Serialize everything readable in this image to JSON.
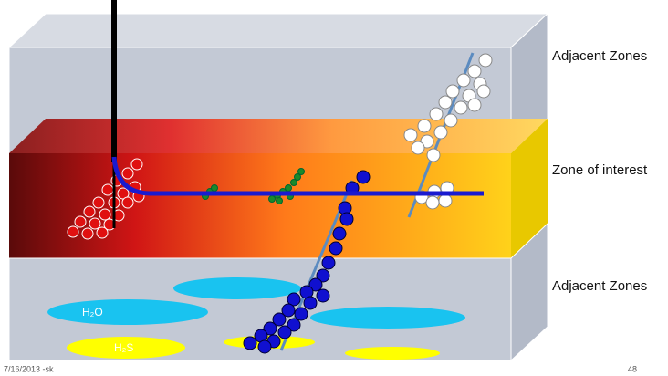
{
  "zones": {
    "top": "Adjacent Zones",
    "middle": "Zone of interest",
    "bottom": "Adjacent Zones"
  },
  "fluids": {
    "water": "H₂O",
    "gas": "H₂S"
  },
  "footer": {
    "date": "7/16/2013 -sk",
    "page": "48"
  }
}
